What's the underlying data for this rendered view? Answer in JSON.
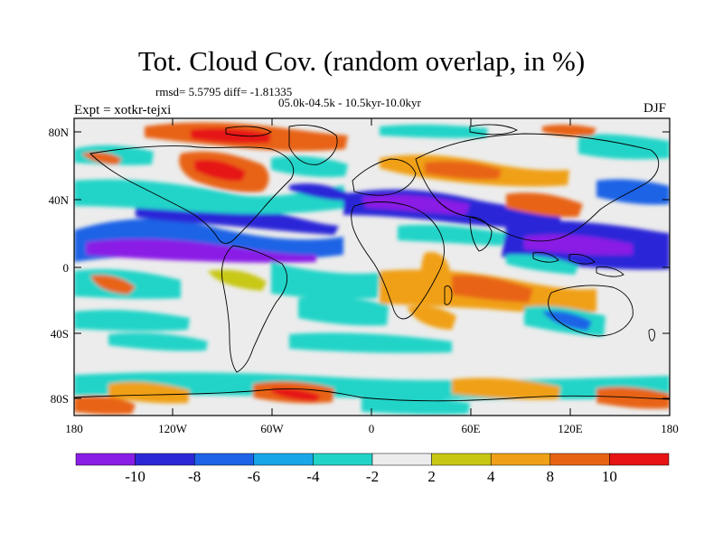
{
  "title": "Tot. Cloud Cov. (random overlap, in %)",
  "stats_line": "rmsd= 5.5795 diff= -1.81335",
  "period_line": "05.0k-04.5k - 10.5kyr-10.0kyr",
  "left_label": "Expt = xotkr-tejxi",
  "right_label": "DJF",
  "lat_ticks": [
    "80N",
    "40N",
    "0",
    "40S",
    "80S"
  ],
  "lon_ticks": [
    "180",
    "120W",
    "60W",
    "0",
    "60E",
    "120E",
    "180"
  ],
  "colorbar": {
    "labels": [
      "-10",
      "-8",
      "-6",
      "-4",
      "-2",
      "2",
      "4",
      "8",
      "10"
    ],
    "colors": [
      "#8a1ee6",
      "#2c28d8",
      "#1e64e6",
      "#18a6e8",
      "#22d4c8",
      "#ececec",
      "#c8c814",
      "#f0a018",
      "#e86414",
      "#e61414"
    ]
  },
  "map_data": {
    "type": "contour-map",
    "variable": "Tot. Cloud Cov. (random overlap, in %)",
    "season": "DJF",
    "levels": [
      -10,
      -8,
      -6,
      -4,
      -2,
      2,
      4,
      8,
      10
    ],
    "lon_range": [
      -180,
      180
    ],
    "lat_range": [
      -90,
      90
    ]
  }
}
